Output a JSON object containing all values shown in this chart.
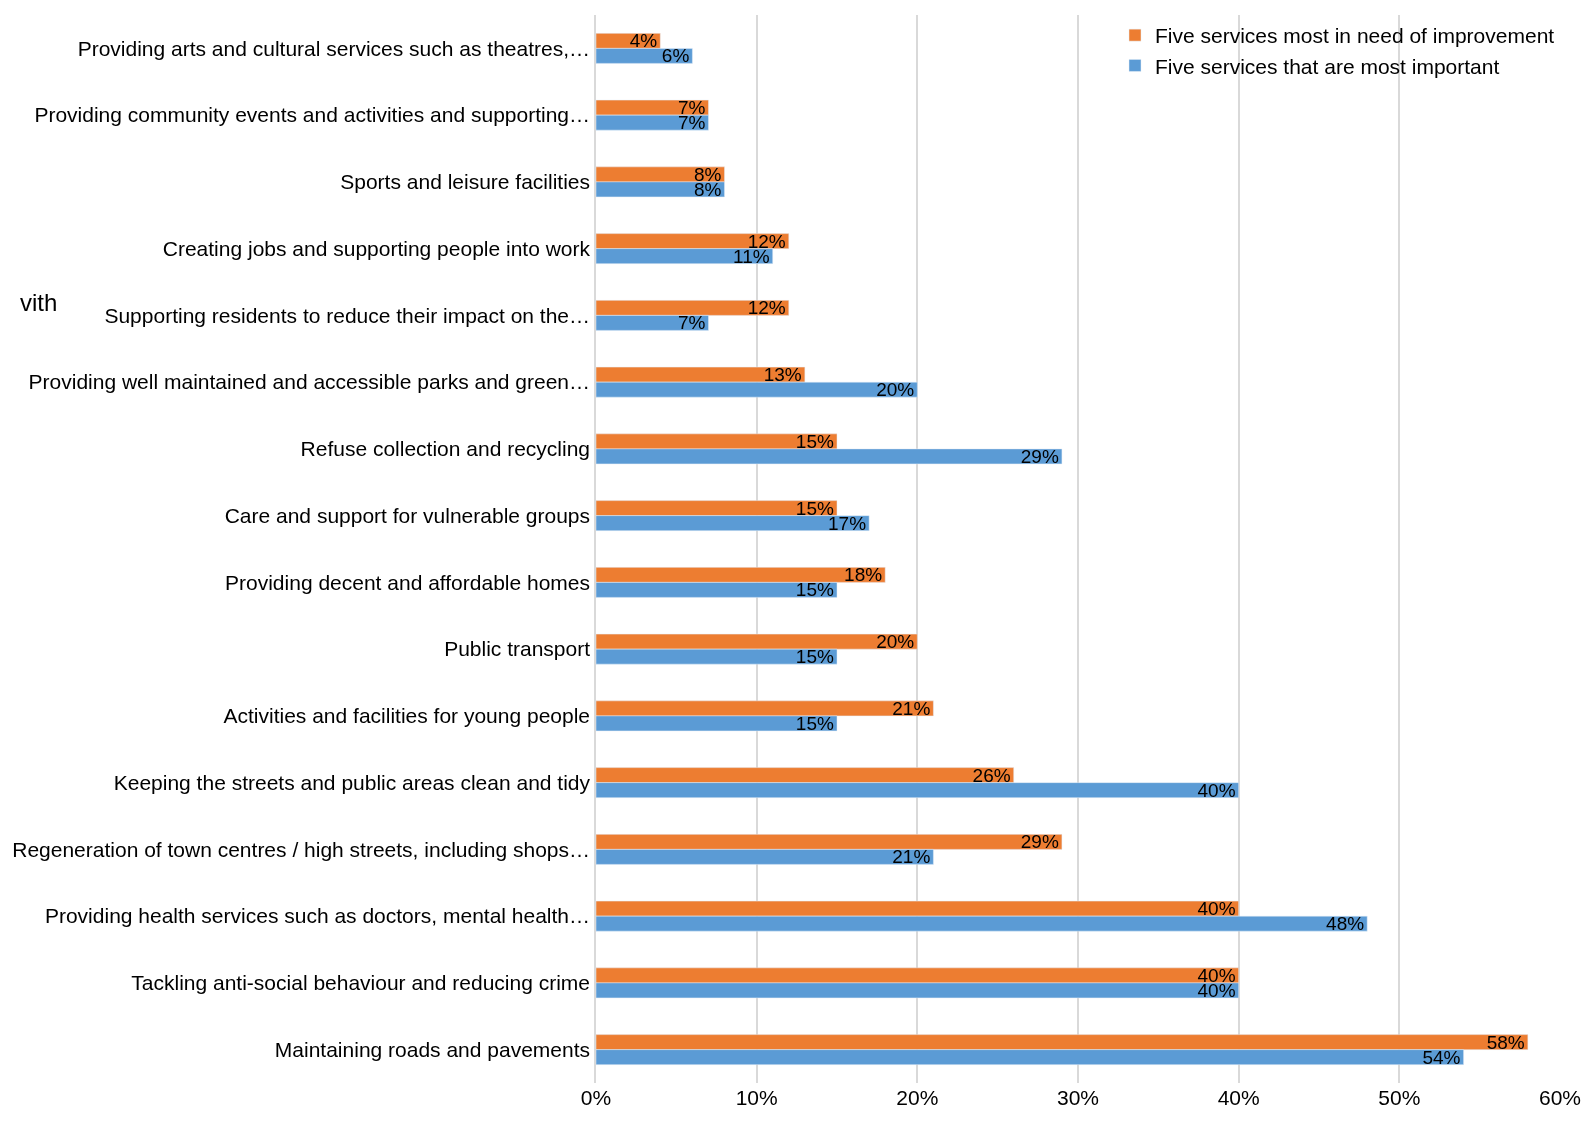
{
  "chart_data": {
    "type": "bar",
    "orientation": "horizontal",
    "categories": [
      "Providing arts and cultural services such as theatres,…",
      "Providing community events and activities and supporting…",
      "Sports and leisure facilities",
      "Creating jobs and supporting people into work",
      "Supporting residents to reduce their impact on the…",
      "Providing well maintained and accessible parks and green…",
      "Refuse collection and recycling",
      "Care and support for vulnerable groups",
      "Providing decent and affordable homes",
      "Public transport",
      "Activities and facilities for young people",
      "Keeping the streets and public areas clean and tidy",
      "Regeneration of town centres / high streets, including shops…",
      "Providing health services such as doctors, mental health…",
      "Tackling anti-social behaviour and reducing crime",
      "Maintaining roads and pavements"
    ],
    "series": [
      {
        "name": "Five services most in need of improvement",
        "color": "#ed7d31",
        "values": [
          4,
          7,
          8,
          12,
          12,
          13,
          15,
          15,
          18,
          20,
          21,
          26,
          29,
          40,
          40,
          58
        ],
        "value_labels": [
          "4%",
          "7%",
          "8%",
          "12%",
          "12%",
          "13%",
          "15%",
          "15%",
          "18%",
          "20%",
          "21%",
          "26%",
          "29%",
          "40%",
          "40%",
          "58%"
        ]
      },
      {
        "name": "Five services that are most important",
        "color": "#5b9bd5",
        "values": [
          6,
          7,
          8,
          11,
          7,
          20,
          29,
          17,
          15,
          15,
          15,
          40,
          21,
          48,
          40,
          54
        ],
        "value_labels": [
          "6%",
          "7%",
          "8%",
          "11%",
          "7%",
          "20%",
          "29%",
          "17%",
          "15%",
          "15%",
          "15%",
          "40%",
          "21%",
          "48%",
          "40%",
          "54%"
        ]
      }
    ],
    "xlim": [
      0,
      60
    ],
    "xticks": [
      {
        "value": 0,
        "label": "0%"
      },
      {
        "value": 10,
        "label": "10%"
      },
      {
        "value": 20,
        "label": "20%"
      },
      {
        "value": 30,
        "label": "30%"
      },
      {
        "value": 40,
        "label": "40%"
      },
      {
        "value": 50,
        "label": "50%"
      },
      {
        "value": 60,
        "label": "60%"
      }
    ],
    "grid": "x",
    "legend": "top right",
    "annotations": [
      "vith"
    ]
  }
}
